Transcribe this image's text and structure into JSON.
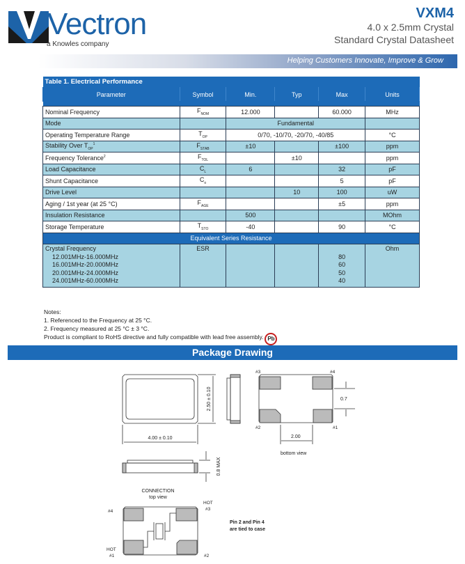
{
  "header": {
    "logo_text": "Vectron",
    "logo_tagline": "a Knowles company",
    "product_code": "VXM4",
    "subtitle_1": "4.0 x 2.5mm Crystal",
    "subtitle_2": "Standard Crystal Datasheet",
    "slogan": "Helping Customers Innovate, Improve & Grow"
  },
  "table": {
    "caption": "Table 1. Electrical Performance",
    "columns": [
      "Parameter",
      "Symbol",
      "Min.",
      "Typ",
      "Max",
      "Units"
    ],
    "rows": [
      {
        "param": "Nominal Frequency",
        "sym": "F",
        "sub": "NOM",
        "min": "12.000",
        "typ": "",
        "max": "60.000",
        "units": "MHz"
      },
      {
        "param": "Mode",
        "sym": "",
        "sub": "",
        "span": "Fundamental",
        "units": ""
      },
      {
        "param": "Operating Temperature Range",
        "sym": "T",
        "sub": "OP",
        "span": "0/70, -10/70, -20/70, -40/85",
        "units": "°C"
      },
      {
        "param": "Stability Over T",
        "psub": "OP",
        "psup": "1",
        "sym": "F",
        "sub": "STAB",
        "min": "±10",
        "typ": "",
        "max": "±100",
        "units": "ppm"
      },
      {
        "param": "Frequency Tolerance",
        "psup": "2",
        "sym": "F",
        "sub": "TOL",
        "min": "",
        "typ": "±10",
        "max": "",
        "units": "ppm"
      },
      {
        "param": "Load Capacitance",
        "sym": "C",
        "sub": "L",
        "min": "6",
        "typ": "",
        "max": "32",
        "units": "pF"
      },
      {
        "param": "Shunt Capacitance",
        "sym": "C",
        "sub": "o",
        "min": "",
        "typ": "",
        "max": "5",
        "units": "pF"
      },
      {
        "param": "Drive Level",
        "sym": "",
        "sub": "",
        "min": "",
        "typ": "10",
        "max": "100",
        "units": "uW"
      },
      {
        "param": "Aging / 1st year (at 25 °C)",
        "sym": "F",
        "sub": "AGE",
        "min": "",
        "typ": "",
        "max": "±5",
        "units": "ppm"
      },
      {
        "param": "Insulation Resistance",
        "sym": "",
        "sub": "",
        "min": "500",
        "typ": "",
        "max": "",
        "units": "MOhm"
      },
      {
        "param": "Storage Temperature",
        "sym": "T",
        "sub": "STO",
        "min": "-40",
        "typ": "",
        "max": "90",
        "units": "°C"
      }
    ],
    "esr_header": "Equivalent Series Resistance",
    "esr": {
      "param": "Crystal Frequency",
      "sym": "ESR",
      "units": "Ohm",
      "ranges": [
        "12.001MHz-16.000MHz",
        "16.001MHz-20.000MHz",
        "20.001MHz-24.000MHz",
        "24.001MHz-60.000MHz"
      ],
      "max": [
        "80",
        "60",
        "50",
        "40"
      ]
    }
  },
  "notes": {
    "title": "Notes:",
    "items": [
      "1. Referenced to the Frequency at 25 °C.",
      "2. Frequency measured at 25 °C ± 3 °C."
    ],
    "rohs": "Product is compliant to RoHS directive and fully compatible with lead free assembly.",
    "pb_badge": "Pb"
  },
  "package": {
    "title": "Package Drawing",
    "dim_height": "2.50 ± 0.10",
    "dim_width": "4.00 ± 0.10",
    "dim_thickness": "0.8 MAX",
    "dim_pad": "0.7",
    "dim_pitch": "2.00",
    "bottom_view": "bottom view",
    "connection": "CONNECTION",
    "top_view": "top view",
    "pins": {
      "p1": "#1",
      "p2": "#2",
      "p3": "#3",
      "p4": "#4",
      "hot": "HOT"
    },
    "note_1": "Pin 2 and Pin 4",
    "note_2": "are tied to case"
  }
}
